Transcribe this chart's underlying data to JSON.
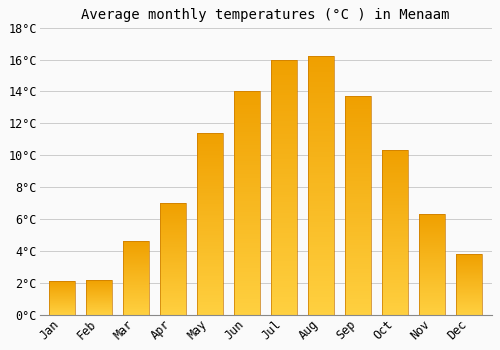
{
  "title": "Average monthly temperatures (°C ) in Menaam",
  "months": [
    "Jan",
    "Feb",
    "Mar",
    "Apr",
    "May",
    "Jun",
    "Jul",
    "Aug",
    "Sep",
    "Oct",
    "Nov",
    "Dec"
  ],
  "temperatures": [
    2.1,
    2.2,
    4.6,
    7.0,
    11.4,
    14.0,
    16.0,
    16.2,
    13.7,
    10.3,
    6.3,
    3.8
  ],
  "bar_color_top": "#FFD040",
  "bar_color_bottom": "#F0A000",
  "bar_edge_color": "#C87800",
  "background_color": "#FAFAFA",
  "grid_color": "#CCCCCC",
  "ylim": [
    0,
    18
  ],
  "yticks": [
    0,
    2,
    4,
    6,
    8,
    10,
    12,
    14,
    16,
    18
  ],
  "ytick_labels": [
    "0°C",
    "2°C",
    "4°C",
    "6°C",
    "8°C",
    "10°C",
    "12°C",
    "14°C",
    "16°C",
    "18°C"
  ],
  "title_fontsize": 10,
  "tick_fontsize": 8.5,
  "font_family": "monospace"
}
